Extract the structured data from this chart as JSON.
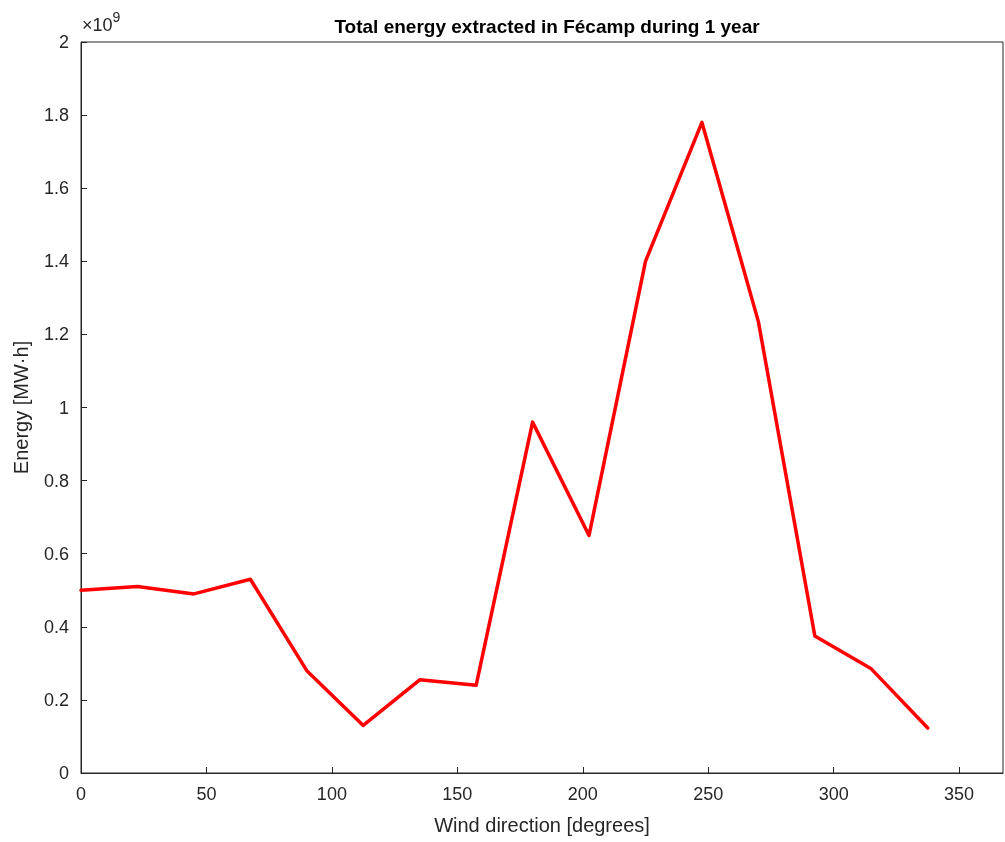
{
  "chart_data": {
    "type": "line",
    "title": "Total energy extracted in Fécamp during 1 year",
    "xlabel": "Wind direction [degrees]",
    "ylabel": "Energy [MW·h]",
    "annotations": [
      "×10$^{9}$"
    ],
    "x": [
      0,
      22.5,
      45,
      67.5,
      90,
      112.5,
      135,
      157.5,
      180,
      202.5,
      225,
      247.5,
      270,
      292.5,
      315,
      337.5
    ],
    "series": [
      {
        "color": "#ff0000",
        "values": [
          0.5,
          0.51,
          0.49,
          0.53,
          0.28,
          0.13,
          0.255,
          0.24,
          0.96,
          0.65,
          1.4,
          1.78,
          1.235,
          0.375,
          0.285,
          0.123
        ]
      }
    ],
    "xlim": [
      0,
      367.5
    ],
    "xticks": [
      0,
      50,
      100,
      150,
      200,
      250,
      300,
      350
    ],
    "ylim": [
      0,
      2
    ],
    "yticks": [
      0,
      0.2,
      0.4,
      0.6,
      0.8,
      1,
      1.2,
      1.4,
      1.6,
      1.8,
      2
    ],
    "grid": false,
    "marker": "none",
    "line_style": "solid"
  }
}
